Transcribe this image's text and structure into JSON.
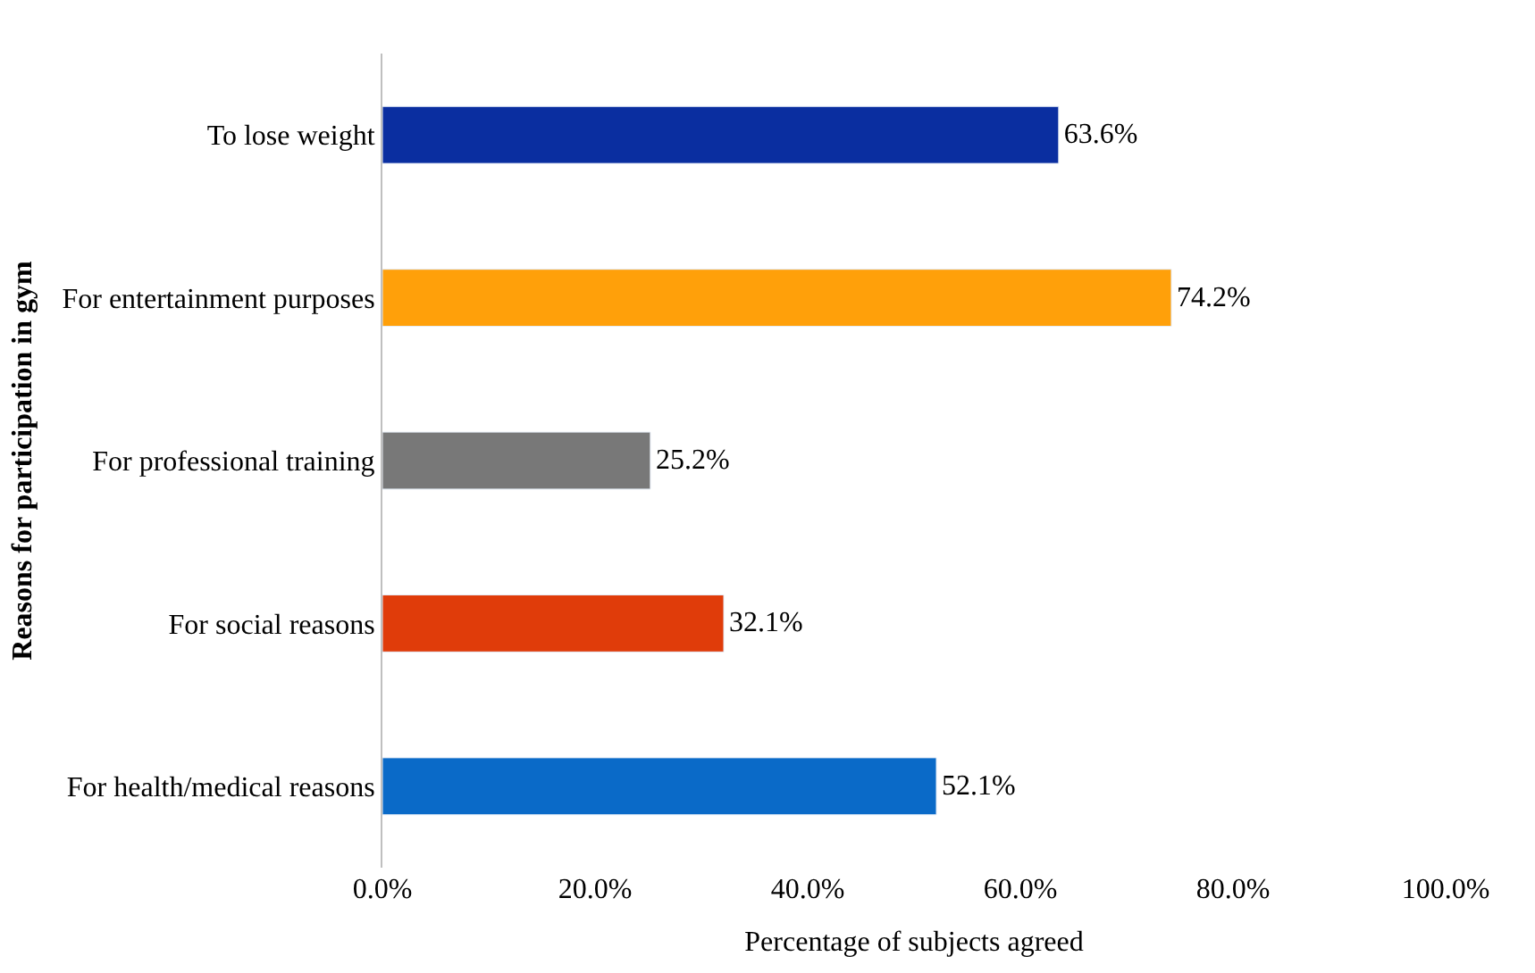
{
  "chart_data": {
    "type": "bar",
    "orientation": "horizontal",
    "categories": [
      "To lose weight",
      "For entertainment purposes",
      "For professional training",
      "For social reasons",
      "For health/medical reasons"
    ],
    "values": [
      63.6,
      74.2,
      25.2,
      32.1,
      52.1
    ],
    "colors": [
      "#0a2ea0",
      "#ffa00a",
      "#787878",
      "#e03c0a",
      "#0a6ac8"
    ],
    "value_labels": [
      "63.6%",
      "74.2%",
      "25.2%",
      "32.1%",
      "52.1%"
    ],
    "xlabel": "Percentage of subjects agreed",
    "ylabel": "Reasons for participation in gym",
    "xlim": [
      0,
      100
    ],
    "xticks": [
      {
        "value": 0,
        "label": "0.0%"
      },
      {
        "value": 20,
        "label": "20.0%"
      },
      {
        "value": 40,
        "label": "40.0%"
      },
      {
        "value": 60,
        "label": "60.0%"
      },
      {
        "value": 80,
        "label": "80.0%"
      },
      {
        "value": 100,
        "label": "100.0%"
      }
    ],
    "tick_labels": [
      "x",
      "y"
    ]
  }
}
